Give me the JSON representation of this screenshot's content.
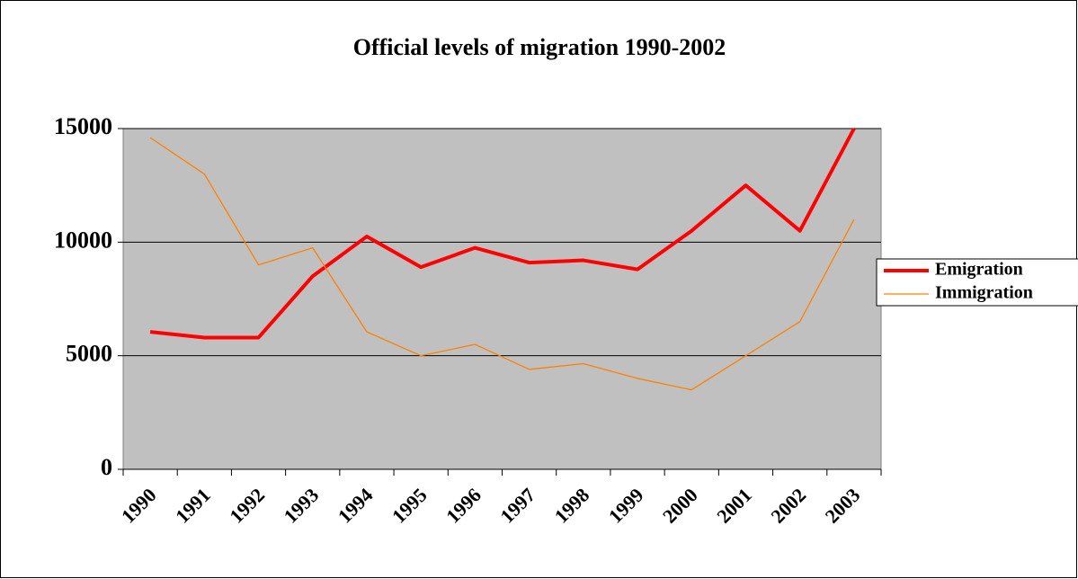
{
  "chart_data": {
    "type": "line",
    "title": "Official levels of migration 1990-2002",
    "categories": [
      "1990",
      "1991",
      "1992",
      "1993",
      "1994",
      "1995",
      "1996",
      "1997",
      "1998",
      "1999",
      "2000",
      "2001",
      "2002",
      "2003"
    ],
    "series": [
      {
        "name": "Emigration",
        "color": "#ff0000",
        "values": [
          6050,
          5800,
          5800,
          8500,
          10250,
          8900,
          9750,
          9100,
          9200,
          8800,
          10500,
          12500,
          10500,
          15000
        ]
      },
      {
        "name": "Immigration",
        "color": "#ff8000",
        "values": [
          14600,
          13000,
          9000,
          9750,
          6050,
          5000,
          5500,
          4400,
          4650,
          4000,
          3500,
          5000,
          6500,
          11000
        ]
      }
    ],
    "ylim": [
      0,
      15000
    ],
    "yticks": [
      0,
      5000,
      10000,
      15000
    ],
    "grid": true,
    "legend": "right"
  }
}
